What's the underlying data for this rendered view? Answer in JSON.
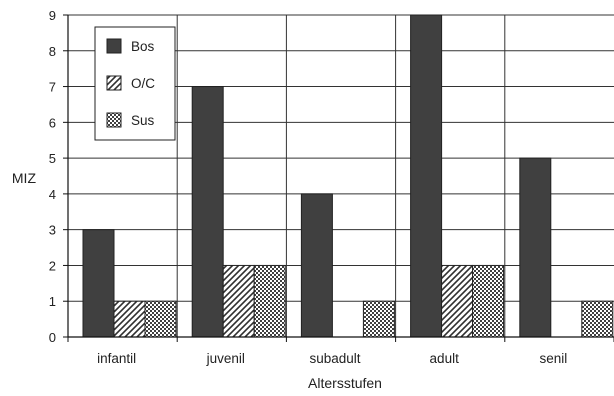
{
  "chart_data": {
    "type": "bar",
    "categories": [
      "infantil",
      "juvenil",
      "subadult",
      "adult",
      "senil"
    ],
    "series": [
      {
        "name": "Bos",
        "values": [
          3,
          7,
          4,
          9,
          5
        ],
        "pattern": "solid",
        "color": "#404040"
      },
      {
        "name": "O/C",
        "values": [
          1,
          2,
          0,
          2,
          0
        ],
        "pattern": "diagonal-hatch",
        "color": "#404040"
      },
      {
        "name": "Sus",
        "values": [
          1,
          2,
          1,
          2,
          1
        ],
        "pattern": "checkerboard",
        "color": "#404040"
      }
    ],
    "title": "",
    "xlabel": "Altersstufen",
    "ylabel": "MIZ",
    "ylim": [
      0,
      9
    ],
    "yticks": [
      0,
      1,
      2,
      3,
      4,
      5,
      6,
      7,
      8,
      9
    ],
    "grid": true,
    "legend_position": "top-left"
  }
}
